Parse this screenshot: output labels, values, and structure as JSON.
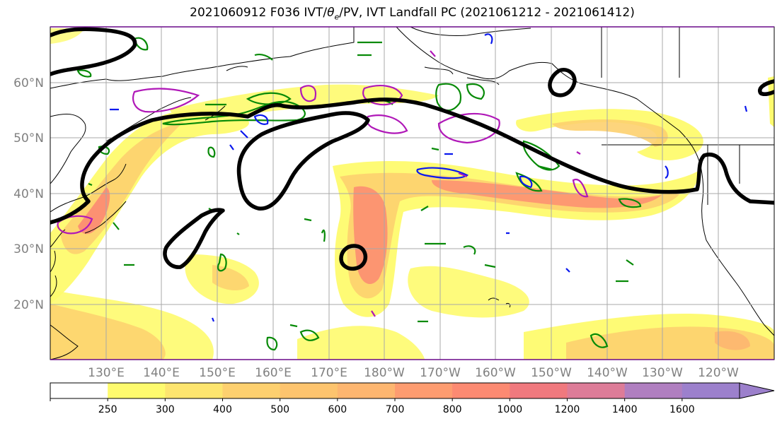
{
  "title": "2021060912 F036 IVT/θe/PV, IVT Landfall PC (2021061212 - 2021061412)",
  "map": {
    "lat_labels": [
      "60°N",
      "50°N",
      "40°N",
      "30°N",
      "20°N"
    ],
    "lon_labels": [
      "130°E",
      "140°E",
      "150°E",
      "160°E",
      "170°E",
      "180°W",
      "170°W",
      "160°W",
      "150°W",
      "140°W",
      "130°W",
      "120°W"
    ],
    "extent": {
      "lon_min": 120,
      "lon_max": 250,
      "lat_min": 10,
      "lat_max": 70
    }
  },
  "colorbar": {
    "ticks": [
      "250",
      "300",
      "400",
      "500",
      "600",
      "700",
      "800",
      "1000",
      "1200",
      "1400",
      "1600"
    ],
    "colors": [
      "#ffffff",
      "#fefb6e",
      "#fde56f",
      "#fdd06f",
      "#fdc46e",
      "#fdb670",
      "#fd9c70",
      "#fc8a72",
      "#f0797e",
      "#dd7c98",
      "#b07fc0",
      "#9c80cc"
    ],
    "extend": "max"
  },
  "legend_colors": {
    "pc_contour": "#000000",
    "pv": "#b018b8",
    "theta_e_green": "#078a07",
    "theta_e_blue": "#0a18ee"
  }
}
